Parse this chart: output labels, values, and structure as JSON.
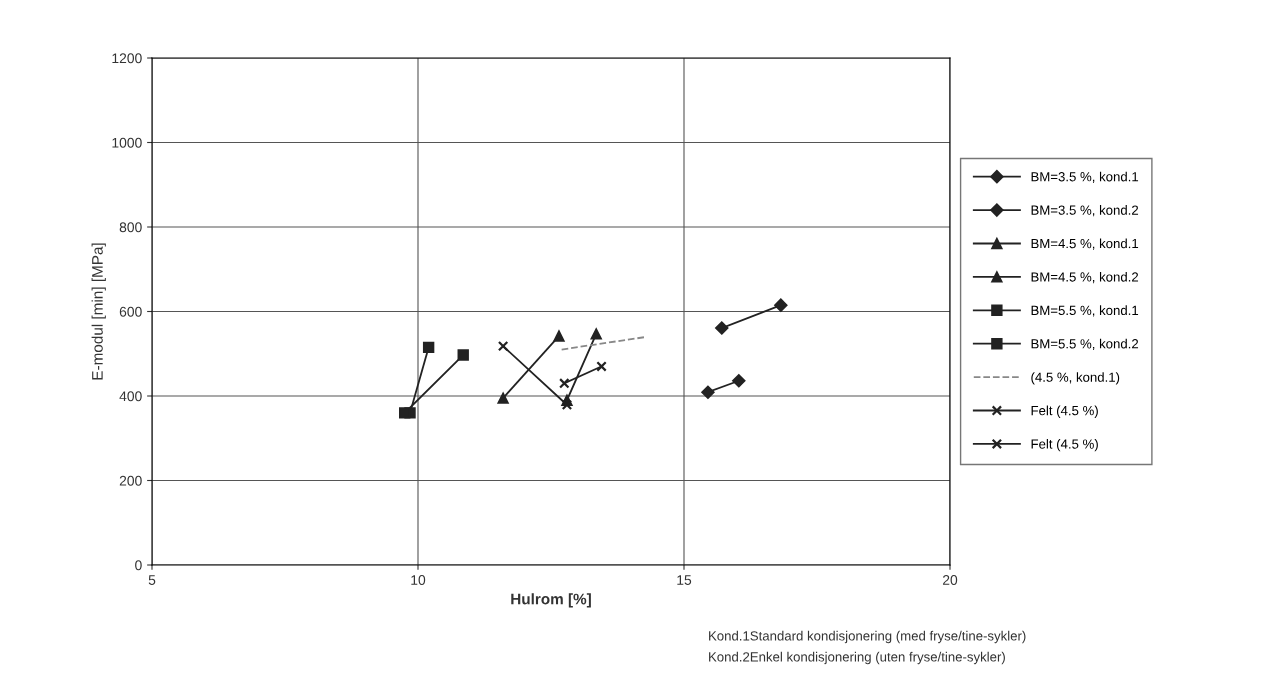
{
  "chart_data": {
    "type": "line",
    "xlabel": "Hulrom [%]",
    "ylabel": "E-modul [min] [MPa]",
    "xlim": [
      5,
      20
    ],
    "xticks": [
      5,
      10,
      15,
      20
    ],
    "ylim": [
      0,
      1200
    ],
    "yticks": [
      0,
      200,
      400,
      600,
      800,
      1000,
      1200
    ],
    "grid": true,
    "legend": "right",
    "series": [
      {
        "name": "BM=3.5 %, kond.1",
        "color": "#222222",
        "marker": "diamond",
        "x": [
          15.45,
          16.03
        ],
        "values": [
          409,
          436
        ]
      },
      {
        "name": "BM=3.5 %, kond.2",
        "color": "#222222",
        "marker": "diamond",
        "x": [
          15.71,
          16.82
        ],
        "values": [
          561,
          615
        ]
      },
      {
        "name": "BM=4.5 %, kond.1",
        "color": "#222222",
        "marker": "triangle",
        "x": [
          12.8,
          13.35
        ],
        "values": [
          390,
          547
        ]
      },
      {
        "name": "BM=4.5 %, kond.2",
        "color": "#222222",
        "marker": "triangle",
        "x": [
          11.6,
          12.65
        ],
        "values": [
          395,
          542
        ]
      },
      {
        "name": "BM=5.5 %, kond.1",
        "color": "#222222",
        "marker": "square",
        "x": [
          9.85,
          10.2
        ],
        "values": [
          360,
          515
        ]
      },
      {
        "name": "BM=5.5 %, kond.2",
        "color": "#222222",
        "marker": "square",
        "x": [
          9.75,
          10.85
        ],
        "values": [
          360,
          497
        ]
      },
      {
        "name": "(4.5 %, kond.1)",
        "color": "#888888",
        "marker": "none",
        "line_style": "dashed",
        "x": [
          12.7,
          14.3
        ],
        "values": [
          510,
          540
        ]
      },
      {
        "name": "Felt (4.5 %)",
        "color": "#222222",
        "marker": "cross",
        "x": [
          11.6,
          12.8
        ],
        "values": [
          518,
          379
        ]
      },
      {
        "name": "Felt (4.5 %)",
        "color": "#222222",
        "marker": "cross",
        "x": [
          12.75,
          13.45
        ],
        "values": [
          430,
          470
        ]
      }
    ],
    "annotations": [
      "Kond.1Standard kondisjonering (med fryse/tine-sykler)",
      "Kond.2Enkel kondisjonering (uten fryse/tine-sykler)"
    ]
  }
}
